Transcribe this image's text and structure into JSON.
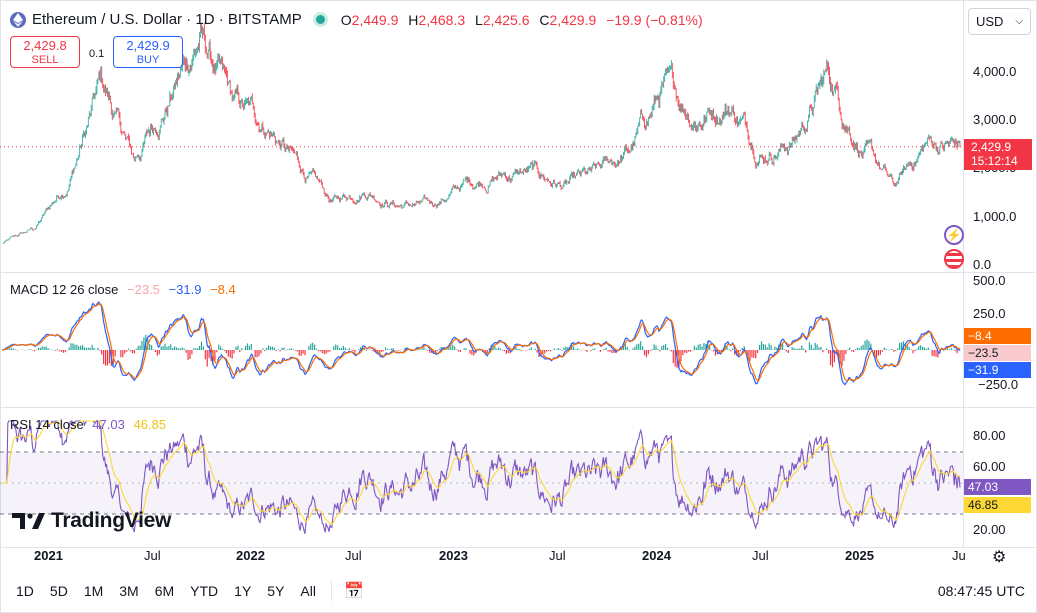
{
  "header": {
    "symbol": "Ethereum / U.S. Dollar · 1D · BITSTAMP",
    "ohlc": [
      {
        "k": "O",
        "v": "2,449.9"
      },
      {
        "k": "H",
        "v": "2,468.3"
      },
      {
        "k": "L",
        "v": "2,425.6"
      },
      {
        "k": "C",
        "v": "2,429.9"
      }
    ],
    "change": "−19.9 (−0.81%)"
  },
  "trade": {
    "sell_price": "2,429.8",
    "sell_label": "SELL",
    "spread": "0.1",
    "buy_price": "2,429.9",
    "buy_label": "BUY"
  },
  "currency": "USD",
  "price_axis": [
    "4,000.0",
    "3,000.0",
    "2,000.0",
    "1,000.0",
    "0.0"
  ],
  "price_tag": {
    "price": "2,429.9",
    "countdown": "15:12:14"
  },
  "macd": {
    "title": "MACD 12 26 close",
    "v1": "−23.5",
    "v2": "−31.9",
    "v3": "−8.4",
    "axis": [
      "500.0",
      "250.0",
      "−250.0"
    ],
    "tags": {
      "hist": "−8.4",
      "macd": "−23.5",
      "signal": "−31.9"
    }
  },
  "rsi": {
    "title": "RSI 14 close",
    "v1": "47.03",
    "v2": "46.85",
    "axis": [
      "80.00",
      "60.00",
      "20.00"
    ],
    "tags": {
      "rsi": "47.03",
      "ma": "46.85"
    }
  },
  "time_axis": [
    {
      "label": "2021",
      "bold": true
    },
    {
      "label": "Jul",
      "bold": false
    },
    {
      "label": "2022",
      "bold": true
    },
    {
      "label": "Jul",
      "bold": false
    },
    {
      "label": "2023",
      "bold": true
    },
    {
      "label": "Jul",
      "bold": false
    },
    {
      "label": "2024",
      "bold": true
    },
    {
      "label": "Jul",
      "bold": false
    },
    {
      "label": "2025",
      "bold": true
    },
    {
      "label": "Ju",
      "bold": false
    }
  ],
  "periods": [
    "1D",
    "5D",
    "1M",
    "3M",
    "6M",
    "YTD",
    "1Y",
    "5Y",
    "All"
  ],
  "clock": "08:47:45 UTC",
  "logo": "TradingView",
  "colors": {
    "up": "#26a69a",
    "down": "#f23645",
    "macd": "#2962ff",
    "signal": "#ff6d00",
    "rsi": "#7e57c2",
    "rsi_ma": "#fdd835"
  },
  "chart_data": {
    "type": "line",
    "title": "Ethereum / U.S. Dollar · 1D · BITSTAMP",
    "x": [
      "2020-11",
      "2021-01",
      "2021-03",
      "2021-05",
      "2021-07",
      "2021-09",
      "2021-11",
      "2022-01",
      "2022-03",
      "2022-05",
      "2022-07",
      "2022-09",
      "2022-11",
      "2023-01",
      "2023-03",
      "2023-05",
      "2023-07",
      "2023-09",
      "2023-11",
      "2024-01",
      "2024-03",
      "2024-05",
      "2024-07",
      "2024-09",
      "2024-11",
      "2025-01",
      "2025-03",
      "2025-04",
      "2025-05",
      "2025-06"
    ],
    "series": [
      {
        "values": [
          420,
          730,
          1700,
          3700,
          2100,
          3400,
          4700,
          3200,
          2900,
          2000,
          1250,
          1600,
          1250,
          1200,
          1650,
          1850,
          1900,
          1600,
          1800,
          2300,
          3600,
          3100,
          3400,
          2400,
          2600,
          3900,
          2500,
          1550,
          2500,
          2430
        ]
      }
    ],
    "ylim": [
      -200,
      5000
    ]
  }
}
